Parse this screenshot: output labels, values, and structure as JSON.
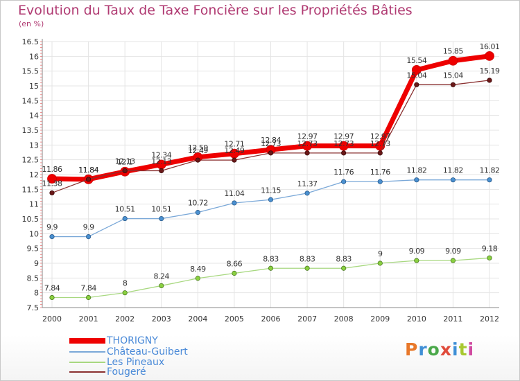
{
  "title": "Evolution du Taux de Taxe Foncière sur les Propriétés Bâties",
  "unit_label": "(en %)",
  "logo": {
    "text": "Proxiti",
    "colors": [
      "#e8782a",
      "#3f8fd6",
      "#4aa84a",
      "#e04a3a",
      "#3f8fd6",
      "#a8c830",
      "#d04aa0"
    ]
  },
  "chart_data": {
    "type": "line",
    "title": "Evolution du Taux de Taxe Foncière sur les Propriétés Bâties",
    "ylabel": "(en %)",
    "xlabel": "",
    "ylim": [
      7.5,
      16.5
    ],
    "yticks": [
      "7.5",
      "8",
      "8.5",
      "9",
      "9.5",
      "10",
      "10.5",
      "11",
      "11.5",
      "12",
      "12.5",
      "13",
      "13.5",
      "14",
      "14.5",
      "15",
      "15.5",
      "16",
      "16.5"
    ],
    "categories": [
      "2000",
      "2001",
      "2002",
      "2003",
      "2004",
      "2005",
      "2006",
      "2007",
      "2008",
      "2009",
      "2010",
      "2011",
      "2012"
    ],
    "legend_position": "bottom-left",
    "series": [
      {
        "name": "THORIGNY",
        "color": "#ee0000",
        "line_width": 7,
        "marker_radius": 6.5,
        "marker_stroke": "#cc0000",
        "values": [
          11.86,
          11.84,
          12.1,
          12.34,
          12.59,
          12.71,
          12.84,
          12.97,
          12.97,
          12.97,
          15.54,
          15.85,
          16.01
        ],
        "labels": [
          "11.86",
          "11.84",
          "12.1",
          "12.34",
          "12.59",
          "12.71",
          "12.84",
          "12.97",
          "12.97",
          "12.97",
          "15.54",
          "15.85",
          "16.01"
        ]
      },
      {
        "name": "Château-Guibert",
        "color": "#7aa8d8",
        "line_width": 1.3,
        "marker_radius": 3.2,
        "marker_fill": "#4a90d0",
        "marker_stroke": "#2a5a8a",
        "values": [
          9.9,
          9.9,
          10.51,
          10.51,
          10.72,
          11.04,
          11.15,
          11.37,
          11.76,
          11.76,
          11.82,
          11.82,
          11.82
        ],
        "labels": [
          "9.9",
          "9.9",
          "10.51",
          "10.51",
          "10.72",
          "11.04",
          "11.15",
          "11.37",
          "11.76",
          "11.76",
          "11.82",
          "11.82",
          "11.82"
        ]
      },
      {
        "name": "Les Pineaux",
        "color": "#a8d880",
        "line_width": 1.3,
        "marker_radius": 3.2,
        "marker_fill": "#8ad040",
        "marker_stroke": "#4a7a20",
        "values": [
          7.84,
          7.84,
          8.0,
          8.24,
          8.49,
          8.66,
          8.83,
          8.83,
          8.83,
          9.0,
          9.09,
          9.09,
          9.18
        ],
        "labels": [
          "7.84",
          "7.84",
          "8",
          "8.24",
          "8.49",
          "8.66",
          "8.83",
          "8.83",
          "8.83",
          "9",
          "9.09",
          "9.09",
          "9.18"
        ]
      },
      {
        "name": "Fougeré",
        "color": "#8a3030",
        "line_width": 1.3,
        "marker_radius": 3.2,
        "marker_fill": "#6a1818",
        "marker_stroke": "#3a0808",
        "values": [
          11.38,
          11.84,
          12.13,
          12.13,
          12.49,
          12.49,
          12.73,
          12.73,
          12.73,
          12.73,
          15.04,
          15.04,
          15.19
        ],
        "labels": [
          "11.38",
          "11.84",
          "12.13",
          "12.13",
          "12.49",
          "12.49",
          "12.73",
          "12.73",
          "12.73",
          "12.73",
          "15.04",
          "15.04",
          "15.19"
        ]
      }
    ]
  }
}
